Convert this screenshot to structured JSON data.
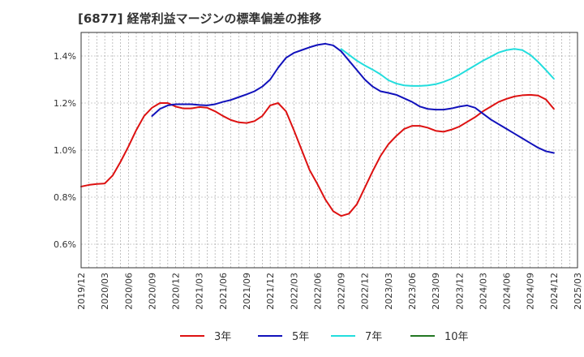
{
  "chart_data": {
    "type": "line",
    "title": "[6877]  経常利益マージンの標準偏差の推移",
    "xlabel": "",
    "ylabel": "",
    "ylim": [
      0.5,
      1.5
    ],
    "yticks": [
      0.6,
      0.8,
      1.0,
      1.2,
      1.4
    ],
    "ytick_labels": [
      "0.6%",
      "0.8%",
      "1.0%",
      "1.2%",
      "1.4%"
    ],
    "x_range": [
      "2019-12",
      "2025-03"
    ],
    "xtick_labels": [
      "2019/12",
      "2020/03",
      "2020/06",
      "2020/09",
      "2020/12",
      "2021/03",
      "2021/06",
      "2021/09",
      "2021/12",
      "2022/03",
      "2022/06",
      "2022/09",
      "2022/12",
      "2023/03",
      "2023/06",
      "2023/09",
      "2023/12",
      "2024/03",
      "2024/06",
      "2024/09",
      "2024/12",
      "2025/03"
    ],
    "grid": true,
    "legend_position": "bottom",
    "series": [
      {
        "name": "3年",
        "color": "#dd1111",
        "x": [
          "2019-12",
          "2020-01",
          "2020-02",
          "2020-03",
          "2020-04",
          "2020-05",
          "2020-06",
          "2020-07",
          "2020-08",
          "2020-09",
          "2020-10",
          "2020-11",
          "2020-12",
          "2021-01",
          "2021-02",
          "2021-03",
          "2021-04",
          "2021-05",
          "2021-06",
          "2021-07",
          "2021-08",
          "2021-09",
          "2021-10",
          "2021-11",
          "2021-12",
          "2022-01",
          "2022-02",
          "2022-03",
          "2022-04",
          "2022-05",
          "2022-06",
          "2022-07",
          "2022-08",
          "2022-09",
          "2022-10",
          "2022-11",
          "2022-12",
          "2023-01",
          "2023-02",
          "2023-03",
          "2023-04",
          "2023-05",
          "2023-06",
          "2023-07",
          "2023-08",
          "2023-09",
          "2023-10",
          "2023-11",
          "2023-12",
          "2024-01",
          "2024-02",
          "2024-03",
          "2024-04",
          "2024-05",
          "2024-06",
          "2024-07",
          "2024-08",
          "2024-09",
          "2024-10",
          "2024-11",
          "2024-12"
        ],
        "values": [
          0.845,
          0.852,
          0.856,
          0.858,
          0.892,
          0.95,
          1.015,
          1.085,
          1.145,
          1.18,
          1.2,
          1.2,
          1.185,
          1.177,
          1.177,
          1.183,
          1.18,
          1.165,
          1.145,
          1.128,
          1.118,
          1.115,
          1.123,
          1.145,
          1.19,
          1.2,
          1.165,
          1.085,
          1.0,
          0.915,
          0.855,
          0.79,
          0.74,
          0.72,
          0.73,
          0.77,
          0.84,
          0.91,
          0.975,
          1.025,
          1.06,
          1.09,
          1.103,
          1.103,
          1.095,
          1.082,
          1.078,
          1.087,
          1.1,
          1.12,
          1.14,
          1.165,
          1.185,
          1.205,
          1.218,
          1.228,
          1.233,
          1.235,
          1.232,
          1.215,
          1.175
        ]
      },
      {
        "name": "5年",
        "color": "#1111bb",
        "x": [
          "2020-09",
          "2020-10",
          "2020-11",
          "2020-12",
          "2021-01",
          "2021-02",
          "2021-03",
          "2021-04",
          "2021-05",
          "2021-06",
          "2021-07",
          "2021-08",
          "2021-09",
          "2021-10",
          "2021-11",
          "2021-12",
          "2022-01",
          "2022-02",
          "2022-03",
          "2022-04",
          "2022-05",
          "2022-06",
          "2022-07",
          "2022-08",
          "2022-09",
          "2022-10",
          "2022-11",
          "2022-12",
          "2023-01",
          "2023-02",
          "2023-03",
          "2023-04",
          "2023-05",
          "2023-06",
          "2023-07",
          "2023-08",
          "2023-09",
          "2023-10",
          "2023-11",
          "2023-12",
          "2024-01",
          "2024-02",
          "2024-03",
          "2024-04",
          "2024-05",
          "2024-06",
          "2024-07",
          "2024-08",
          "2024-09",
          "2024-10",
          "2024-11",
          "2024-12"
        ],
        "values": [
          1.145,
          1.175,
          1.19,
          1.195,
          1.195,
          1.195,
          1.192,
          1.19,
          1.195,
          1.205,
          1.213,
          1.225,
          1.237,
          1.25,
          1.27,
          1.3,
          1.35,
          1.392,
          1.413,
          1.425,
          1.437,
          1.447,
          1.452,
          1.445,
          1.42,
          1.38,
          1.34,
          1.3,
          1.27,
          1.25,
          1.243,
          1.235,
          1.22,
          1.205,
          1.185,
          1.175,
          1.172,
          1.172,
          1.177,
          1.185,
          1.19,
          1.18,
          1.155,
          1.13,
          1.11,
          1.09,
          1.07,
          1.05,
          1.03,
          1.01,
          0.995,
          0.988
        ]
      },
      {
        "name": "7年",
        "color": "#22dddd",
        "x": [
          "2022-09",
          "2022-10",
          "2022-11",
          "2022-12",
          "2023-01",
          "2023-02",
          "2023-03",
          "2023-04",
          "2023-05",
          "2023-06",
          "2023-07",
          "2023-08",
          "2023-09",
          "2023-10",
          "2023-11",
          "2023-12",
          "2024-01",
          "2024-02",
          "2024-03",
          "2024-04",
          "2024-05",
          "2024-06",
          "2024-07",
          "2024-08",
          "2024-09",
          "2024-10",
          "2024-11",
          "2024-12"
        ],
        "values": [
          1.43,
          1.405,
          1.38,
          1.36,
          1.342,
          1.322,
          1.297,
          1.283,
          1.275,
          1.273,
          1.273,
          1.275,
          1.28,
          1.29,
          1.303,
          1.32,
          1.34,
          1.36,
          1.38,
          1.397,
          1.415,
          1.425,
          1.43,
          1.425,
          1.405,
          1.375,
          1.34,
          1.303
        ]
      },
      {
        "name": "10年",
        "color": "#227722",
        "x": [],
        "values": []
      }
    ]
  }
}
